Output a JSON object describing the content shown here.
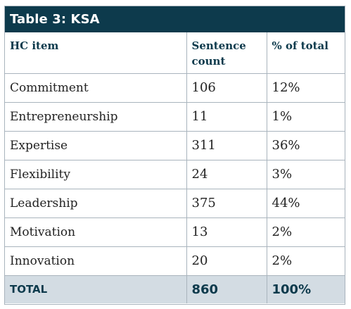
{
  "table": {
    "title": "Table 3: KSA",
    "headers": [
      "HC item",
      "Sentence count",
      "% of total"
    ],
    "rows": [
      [
        "Commitment",
        "106",
        "12%"
      ],
      [
        "Entrepreneurship",
        "11",
        "1%"
      ],
      [
        "Expertise",
        "311",
        "36%"
      ],
      [
        "Flexibility",
        "24",
        "3%"
      ],
      [
        "Leadership",
        "375",
        "44%"
      ],
      [
        "Motivation",
        "13",
        "2%"
      ],
      [
        "Innovation",
        "20",
        "2%"
      ]
    ],
    "total": [
      "TOTAL",
      "860",
      "100%"
    ]
  },
  "colors": {
    "title_bg": "#0d3a4c",
    "header_text": "#0d3a4c",
    "total_bg": "#d3dce3",
    "border": "#a9b4bd"
  }
}
